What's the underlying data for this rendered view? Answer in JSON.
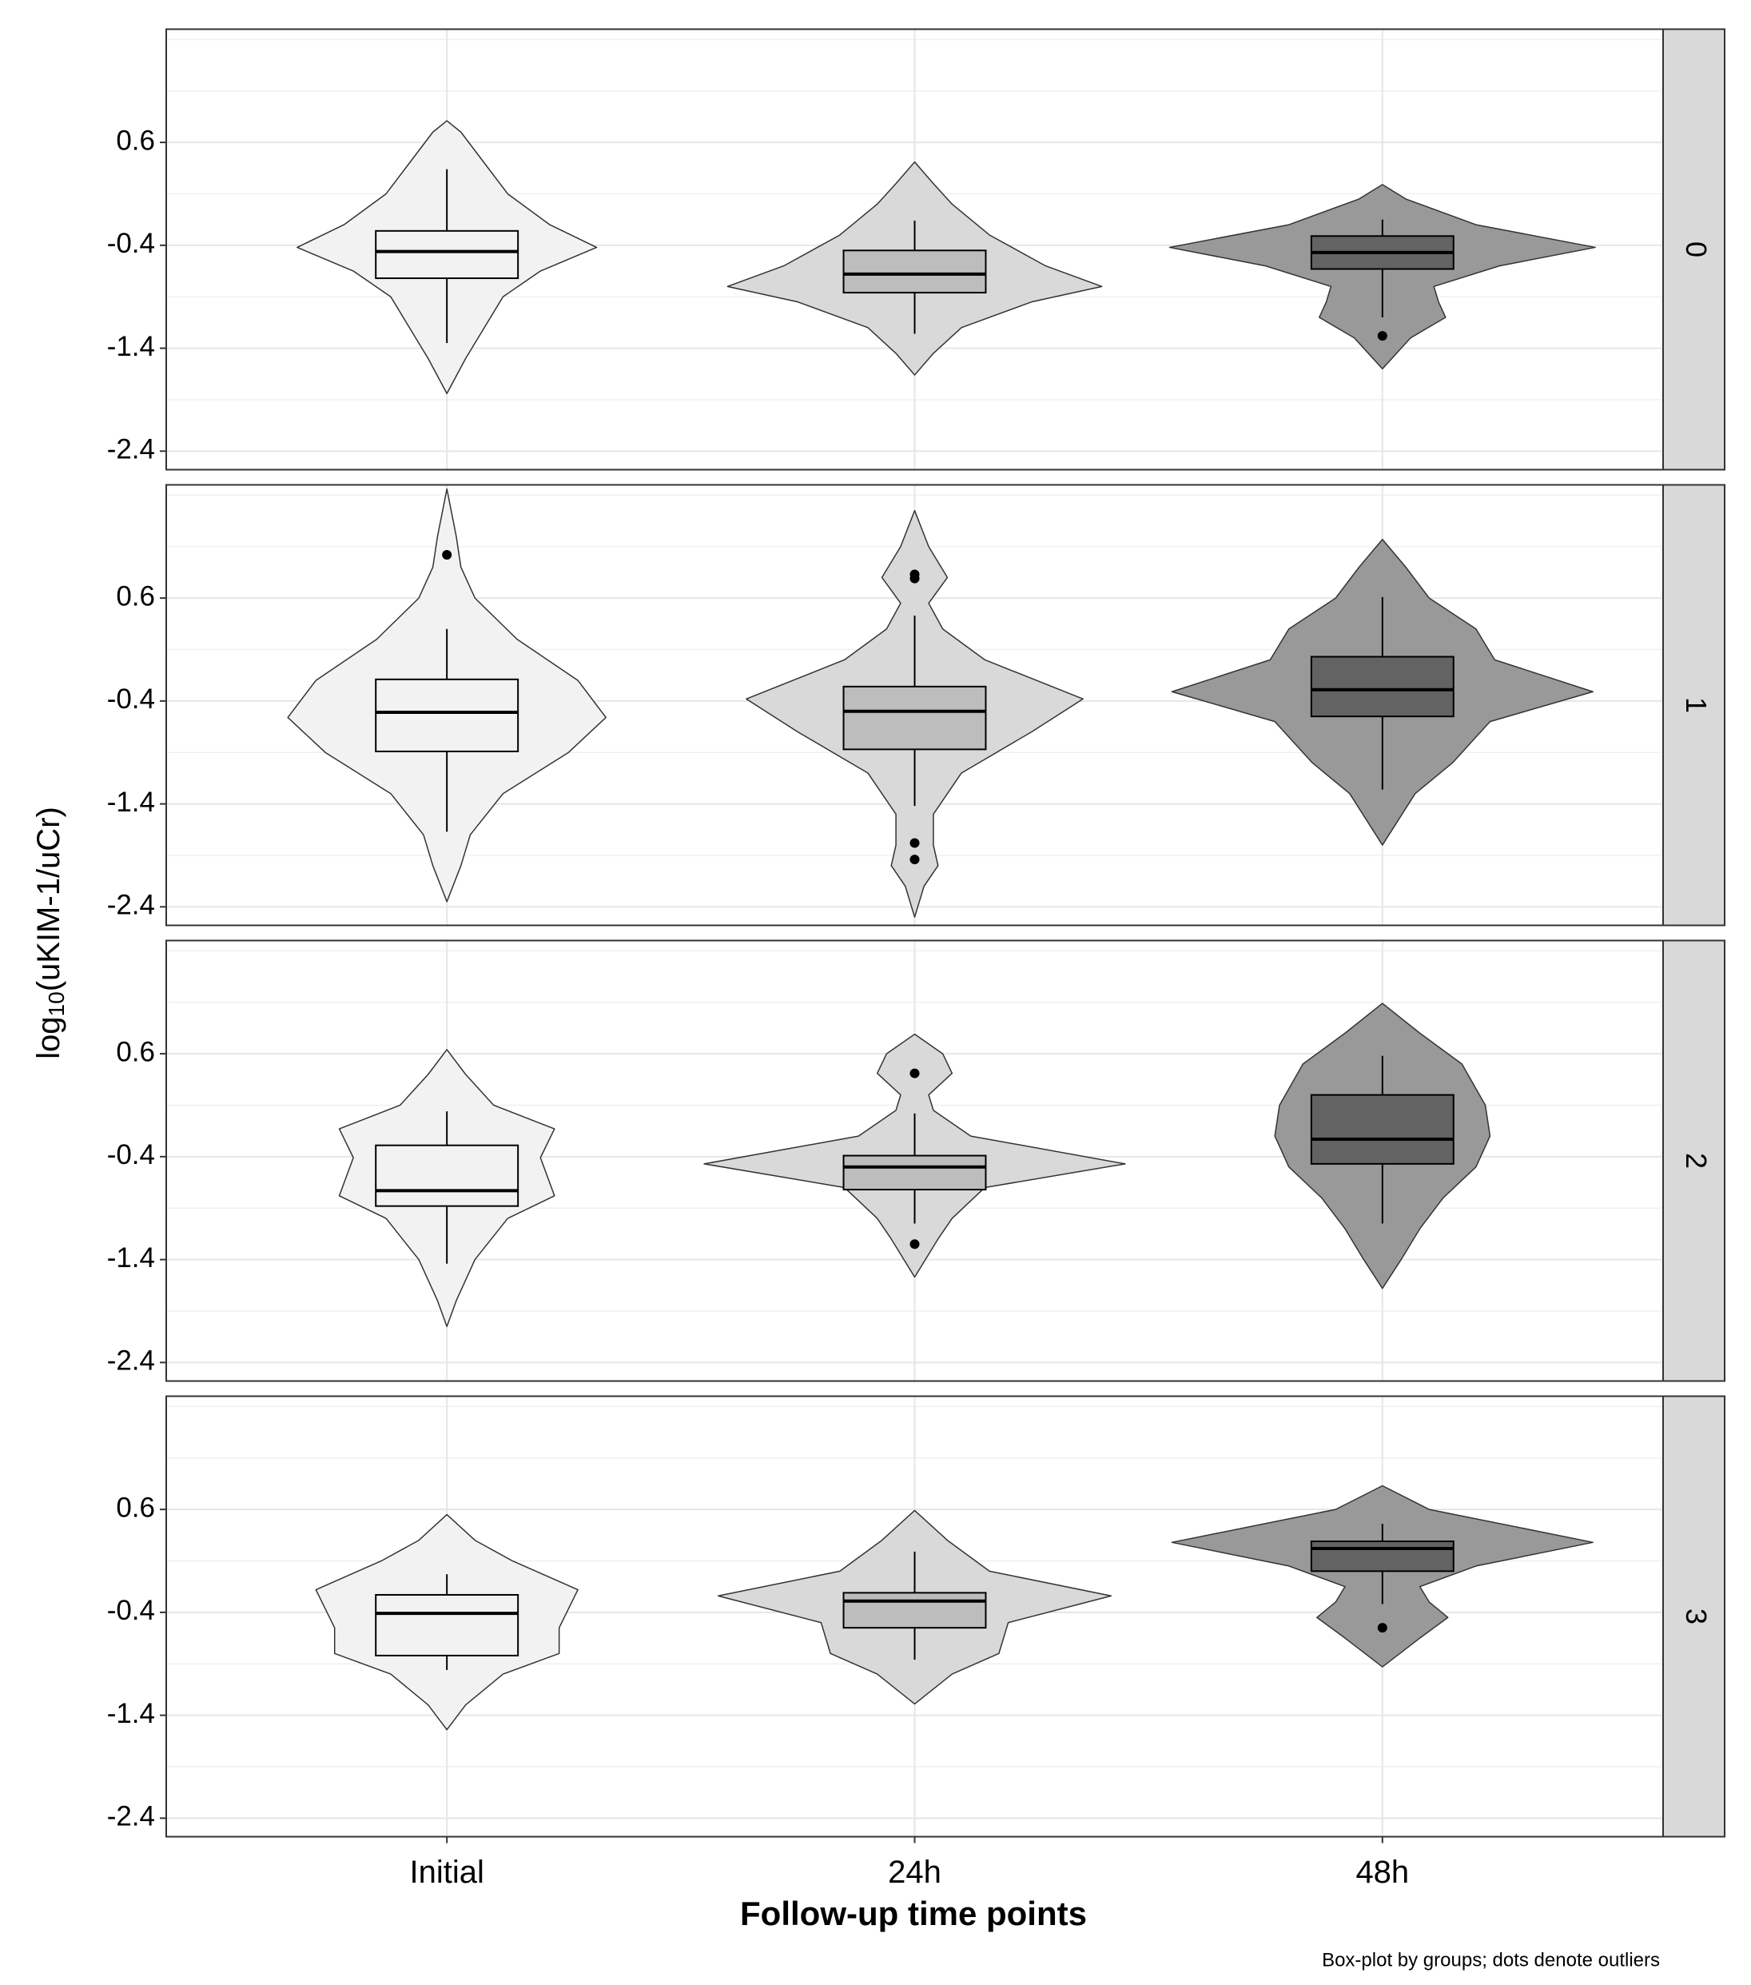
{
  "chart_data": {
    "type": "violin",
    "x_label": "Follow-up time points",
    "y_label_parts": [
      "log",
      "10",
      "(uKIM-1/uCr)"
    ],
    "caption": "Box-plot by groups; dots denote outliers",
    "categories": [
      "Initial",
      "24h",
      "48h"
    ],
    "violin_colors": [
      "#f2f2f2",
      "#d9d9d9",
      "#999999"
    ],
    "box_colors": [
      "#f2f2f2",
      "#bdbdbd",
      "#636363"
    ],
    "ylim": [
      -2.58,
      1.7
    ],
    "yticks": [
      -2.4,
      -1.4,
      -0.4,
      0.6
    ],
    "minor_yticks": [
      -1.9,
      -0.9,
      0.1,
      1.1,
      1.6
    ],
    "grid": true,
    "panels": [
      {
        "label": "0",
        "groups": [
          {
            "violin_y": [
              0.81,
              0.7,
              0.4,
              0.1,
              -0.2,
              -0.42,
              -0.65,
              -0.9,
              -1.2,
              -1.5,
              -1.84
            ],
            "violin_w": [
              0,
              0.03,
              0.08,
              0.13,
              0.22,
              0.32,
              0.2,
              0.12,
              0.08,
              0.04,
              0
            ],
            "whisker_low": -1.35,
            "q1": -0.72,
            "median": -0.46,
            "q3": -0.26,
            "whisker_high": 0.34,
            "outliers": []
          },
          {
            "violin_y": [
              0.41,
              0.2,
              0,
              -0.3,
              -0.6,
              -0.8,
              -0.95,
              -1.2,
              -1.45,
              -1.66
            ],
            "violin_w": [
              0,
              0.04,
              0.08,
              0.16,
              0.28,
              0.4,
              0.25,
              0.1,
              0.04,
              0
            ],
            "whisker_low": -1.26,
            "q1": -0.86,
            "median": -0.68,
            "q3": -0.45,
            "whisker_high": -0.16,
            "outliers": []
          },
          {
            "violin_y": [
              0.19,
              0.05,
              -0.2,
              -0.42,
              -0.6,
              -0.8,
              -0.95,
              -1.1,
              -1.3,
              -1.6
            ],
            "violin_w": [
              0,
              0.05,
              0.2,
              0.455,
              0.25,
              0.11,
              0.12,
              0.135,
              0.06,
              0
            ],
            "whisker_low": -1.1,
            "q1": -0.63,
            "median": -0.47,
            "q3": -0.31,
            "whisker_high": -0.15,
            "outliers": [
              -1.28
            ]
          }
        ]
      },
      {
        "label": "1",
        "groups": [
          {
            "violin_y": [
              1.66,
              1.2,
              0.9,
              0.6,
              0.2,
              -0.2,
              -0.56,
              -0.9,
              -1.3,
              -1.7,
              -2.0,
              -2.35
            ],
            "violin_w": [
              0,
              0.02,
              0.03,
              0.06,
              0.15,
              0.28,
              0.34,
              0.26,
              0.12,
              0.05,
              0.03,
              0
            ],
            "whisker_low": -1.67,
            "q1": -0.89,
            "median": -0.51,
            "q3": -0.19,
            "whisker_high": 0.3,
            "outliers": [
              1.02
            ]
          },
          {
            "violin_y": [
              1.45,
              1.1,
              0.8,
              0.55,
              0.3,
              0,
              -0.38,
              -0.7,
              -1.1,
              -1.5,
              -1.8,
              -2.0,
              -2.2,
              -2.5
            ],
            "violin_w": [
              0,
              0.03,
              0.07,
              0.03,
              0.06,
              0.15,
              0.36,
              0.25,
              0.1,
              0.04,
              0.04,
              0.05,
              0.02,
              0
            ],
            "whisker_low": -1.42,
            "q1": -0.87,
            "median": -0.5,
            "q3": -0.26,
            "whisker_high": 0.43,
            "outliers": [
              0.83,
              0.79,
              -1.78,
              -1.94
            ]
          },
          {
            "violin_y": [
              1.17,
              0.9,
              0.6,
              0.3,
              0,
              -0.31,
              -0.6,
              -1.0,
              -1.3,
              -1.8
            ],
            "violin_w": [
              0,
              0.05,
              0.1,
              0.2,
              0.24,
              0.45,
              0.23,
              0.15,
              0.07,
              0
            ],
            "whisker_low": -1.26,
            "q1": -0.55,
            "median": -0.29,
            "q3": 0.03,
            "whisker_high": 0.61,
            "outliers": []
          }
        ]
      },
      {
        "label": "2",
        "groups": [
          {
            "violin_y": [
              0.64,
              0.4,
              0.1,
              -0.13,
              -0.41,
              -0.78,
              -1.0,
              -1.4,
              -1.8,
              -2.05
            ],
            "violin_w": [
              0,
              0.04,
              0.1,
              0.23,
              0.2,
              0.23,
              0.13,
              0.06,
              0.02,
              0
            ],
            "whisker_low": -1.44,
            "q1": -0.88,
            "median": -0.73,
            "q3": -0.29,
            "whisker_high": 0.04,
            "outliers": []
          },
          {
            "violin_y": [
              0.79,
              0.6,
              0.41,
              0.2,
              0.05,
              -0.2,
              -0.47,
              -0.7,
              -1.0,
              -1.2,
              -1.57
            ],
            "violin_w": [
              0,
              0.06,
              0.08,
              0.03,
              0.04,
              0.12,
              0.45,
              0.15,
              0.08,
              0.05,
              0
            ],
            "whisker_low": -1.05,
            "q1": -0.72,
            "median": -0.5,
            "q3": -0.39,
            "whisker_high": 0.02,
            "outliers": [
              0.41,
              -1.25
            ]
          },
          {
            "violin_y": [
              1.09,
              0.8,
              0.5,
              0.1,
              -0.2,
              -0.5,
              -0.8,
              -1.1,
              -1.4,
              -1.68
            ],
            "violin_w": [
              0,
              0.08,
              0.17,
              0.22,
              0.23,
              0.2,
              0.13,
              0.08,
              0.04,
              0
            ],
            "whisker_low": -1.05,
            "q1": -0.47,
            "median": -0.23,
            "q3": 0.2,
            "whisker_high": 0.58,
            "outliers": []
          }
        ]
      },
      {
        "label": "3",
        "groups": [
          {
            "violin_y": [
              0.55,
              0.3,
              0.1,
              -0.18,
              -0.55,
              -0.8,
              -1.0,
              -1.3,
              -1.54
            ],
            "violin_w": [
              0,
              0.06,
              0.14,
              0.28,
              0.24,
              0.24,
              0.12,
              0.04,
              0
            ],
            "whisker_low": -0.96,
            "q1": -0.82,
            "median": -0.41,
            "q3": -0.23,
            "whisker_high": -0.03,
            "outliers": []
          },
          {
            "violin_y": [
              0.59,
              0.3,
              0,
              -0.24,
              -0.5,
              -0.8,
              -1.0,
              -1.29
            ],
            "violin_w": [
              0,
              0.07,
              0.16,
              0.42,
              0.2,
              0.18,
              0.08,
              0
            ],
            "whisker_low": -0.86,
            "q1": -0.55,
            "median": -0.29,
            "q3": -0.21,
            "whisker_high": 0.19,
            "outliers": []
          },
          {
            "violin_y": [
              0.83,
              0.6,
              0.28,
              0.05,
              -0.15,
              -0.3,
              -0.45,
              -0.65,
              -0.93
            ],
            "violin_w": [
              0,
              0.1,
              0.45,
              0.2,
              0.08,
              0.1,
              0.14,
              0.08,
              0
            ],
            "whisker_low": -0.32,
            "q1": 0,
            "median": 0.22,
            "q3": 0.29,
            "whisker_high": 0.46,
            "outliers": [
              -0.55
            ]
          }
        ]
      }
    ]
  }
}
